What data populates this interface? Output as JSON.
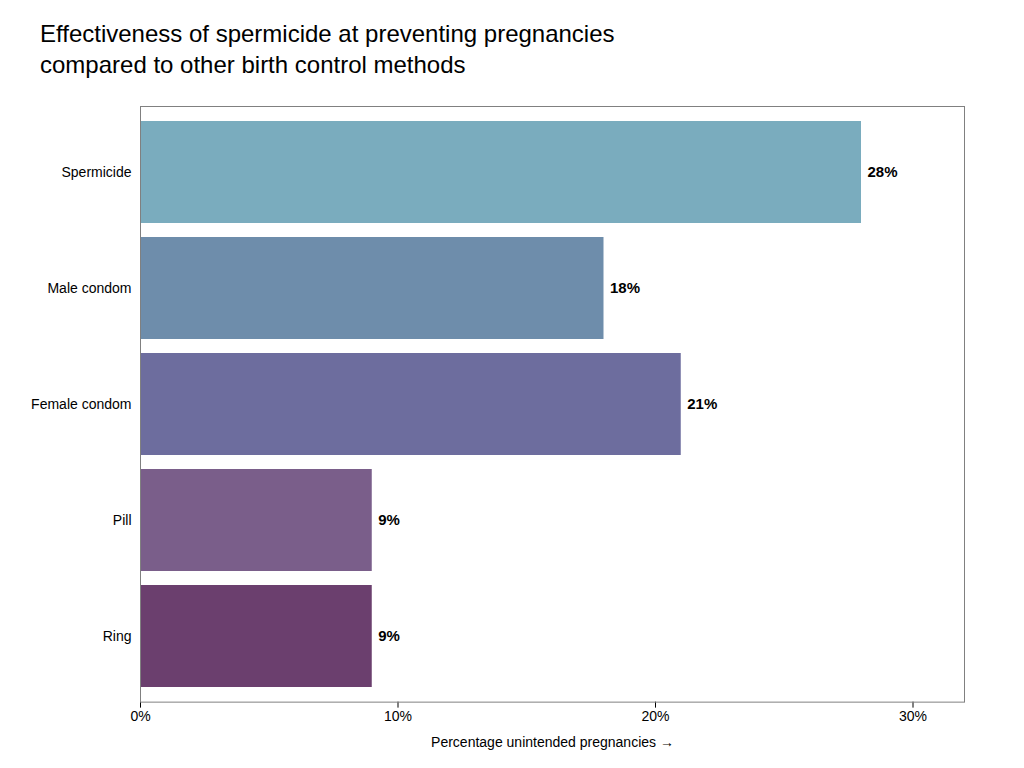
{
  "chart_data": {
    "type": "bar",
    "orientation": "horizontal",
    "title": "Effectiveness of spermicide at preventing pregnancies\ncompared to other birth control methods",
    "categories": [
      "Ring",
      "Pill",
      "Female condom",
      "Male condom",
      "Spermicide"
    ],
    "values": [
      9,
      9,
      21,
      18,
      28
    ],
    "value_labels": [
      "9%",
      "9%",
      "21%",
      "18%",
      "28%"
    ],
    "data_labels": true,
    "colors": [
      "#6b3f6e",
      "#7a5e8a",
      "#6d6d9e",
      "#6e8dab",
      "#7aacbe"
    ],
    "xlabel": "Percentage unintended pregnancies",
    "xlim": [
      0,
      32
    ],
    "xticks": [
      {
        "value": 0,
        "label": "0%"
      },
      {
        "value": 10,
        "label": "10%"
      },
      {
        "value": 20,
        "label": "20%"
      },
      {
        "value": 30,
        "label": "30%"
      }
    ],
    "grid": false
  }
}
